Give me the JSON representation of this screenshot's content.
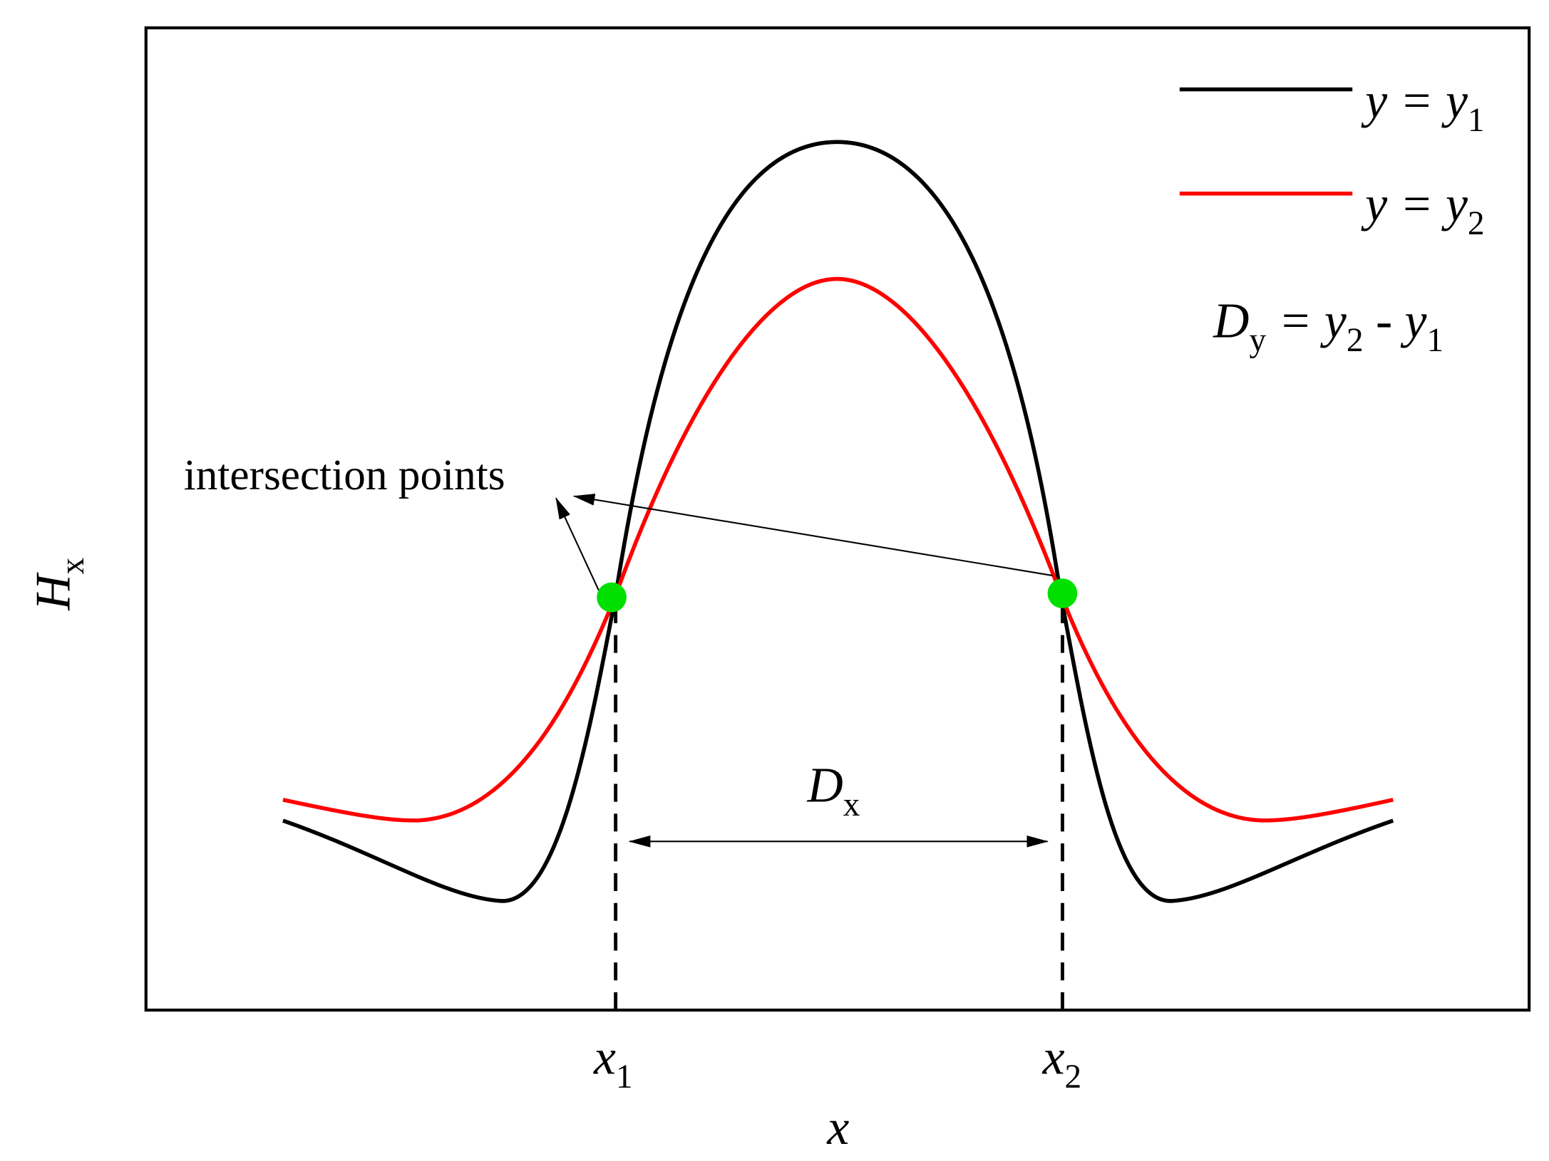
{
  "axes": {
    "y_label": [
      "H",
      "x"
    ],
    "x_label": [
      "x"
    ],
    "x_tick_1": [
      "x",
      "1"
    ],
    "x_tick_2": [
      "x",
      "2"
    ]
  },
  "legend": [
    [
      "y = y",
      "1"
    ],
    [
      "y = y",
      "2"
    ]
  ],
  "formula": [
    "D",
    "y",
    " = y",
    "2",
    " - y",
    "1"
  ],
  "annotation": "intersection points",
  "distance_label": [
    "D",
    "x"
  ]
}
